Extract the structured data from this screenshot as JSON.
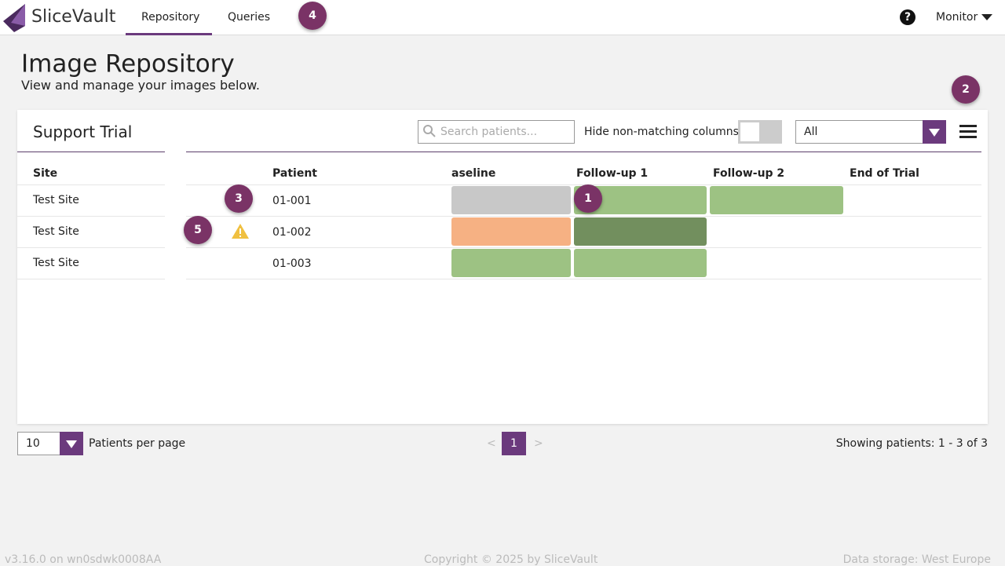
{
  "header": {
    "brand": "SliceVault",
    "tabs": [
      "Repository",
      "Queries"
    ],
    "help": "?",
    "user": "Monitor"
  },
  "badges": [
    "1",
    "2",
    "3",
    "4",
    "5"
  ],
  "page": {
    "title": "Image Repository",
    "subtitle": "View and manage your images below."
  },
  "card": {
    "title": "Support Trial",
    "search_placeholder": "Search patients...",
    "hide_label": "Hide non-matching columns:",
    "filter": "All"
  },
  "table": {
    "columns": [
      "Site",
      "Patient",
      "aseline",
      "Follow-up 1",
      "Follow-up 2",
      "End of Trial"
    ],
    "rows": [
      [
        "Test Site",
        "01-001"
      ],
      [
        "Test Site",
        "01-002"
      ],
      [
        "Test Site",
        "01-003"
      ]
    ]
  },
  "pager": {
    "per_page": "10",
    "per_page_label": "Patients per page",
    "prev": "<",
    "page": "1",
    "next": ">",
    "showing": "Showing patients: 1 - 3 of 3"
  },
  "footer": {
    "version": "v3.16.0 on wn0sdwk0008AA",
    "copyright": "Copyright © 2025 by SliceVault",
    "storage": "Data storage: West Europe"
  }
}
